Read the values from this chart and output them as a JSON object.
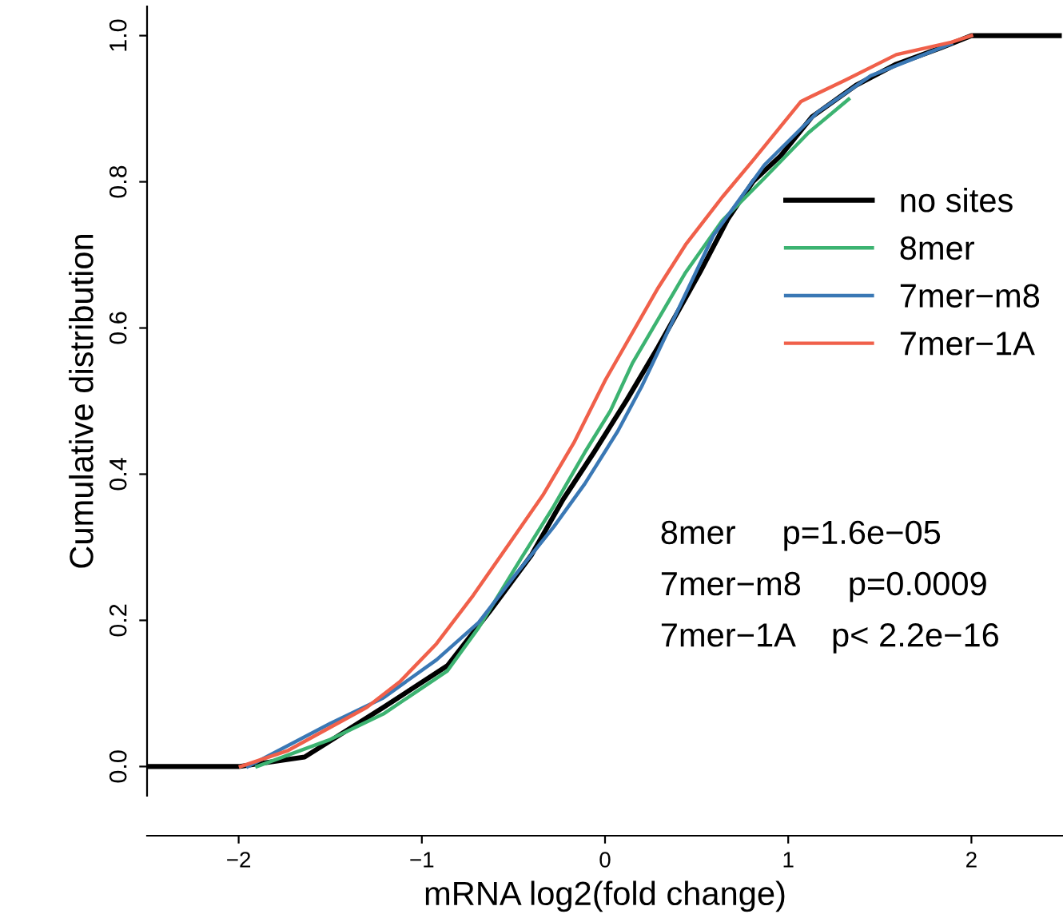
{
  "chart_data": {
    "type": "line",
    "xlabel": "mRNA log2(fold change)",
    "ylabel": "Cumulative distribution",
    "xlim": [
      -2.5,
      2.5
    ],
    "ylim": [
      -0.04,
      1.04
    ],
    "xticks": [
      {
        "value": -2,
        "label": "−2"
      },
      {
        "value": -1,
        "label": "−1"
      },
      0,
      1,
      2
    ],
    "yticks": [
      {
        "value": 0,
        "label": "0.0"
      },
      0.2,
      0.4,
      0.6,
      0.8,
      {
        "value": 1,
        "label": "1.0"
      }
    ],
    "grid": false,
    "legend": "right",
    "marker": "none",
    "line_style": "solid",
    "series": [
      {
        "name": "no sites",
        "color": "#000000",
        "x": [
          -2.49,
          -2.0,
          -1.64,
          -1.21,
          -0.86,
          -0.63,
          -0.4,
          -0.23,
          -0.06,
          0.12,
          0.29,
          0.52,
          0.67,
          0.81,
          0.96,
          1.13,
          1.37,
          1.59,
          1.83,
          2.0,
          2.48
        ],
        "values": [
          0,
          0,
          0.013,
          0.081,
          0.138,
          0.212,
          0.29,
          0.365,
          0.43,
          0.502,
          0.574,
          0.677,
          0.749,
          0.801,
          0.836,
          0.889,
          0.932,
          0.961,
          0.983,
          1.0,
          1.0
        ]
      },
      {
        "name": "8mer",
        "color": "#3cb371",
        "x": [
          -1.9,
          -1.5,
          -1.21,
          -0.86,
          -0.69,
          -0.46,
          -0.28,
          -0.11,
          0.03,
          0.15,
          0.44,
          0.64,
          0.87,
          1.11,
          1.33
        ],
        "values": [
          0,
          0.037,
          0.072,
          0.131,
          0.19,
          0.284,
          0.356,
          0.43,
          0.487,
          0.552,
          0.676,
          0.747,
          0.805,
          0.867,
          0.913
        ]
      },
      {
        "name": "7mer−m8",
        "color": "#3a78b5",
        "x": [
          -1.95,
          -1.5,
          -1.21,
          -0.92,
          -0.69,
          -0.49,
          -0.28,
          -0.11,
          0.07,
          0.2,
          0.59,
          0.87,
          1.16,
          1.45,
          1.89
        ],
        "values": [
          0,
          0.059,
          0.094,
          0.146,
          0.197,
          0.262,
          0.328,
          0.387,
          0.459,
          0.52,
          0.726,
          0.823,
          0.895,
          0.945,
          0.989
        ]
      },
      {
        "name": "7mer−1A",
        "color": "#f0604a",
        "x": [
          -1.99,
          -1.73,
          -1.3,
          -1.12,
          -0.92,
          -0.72,
          -0.52,
          -0.34,
          -0.17,
          0.0,
          0.29,
          0.44,
          0.64,
          0.81,
          1.07,
          1.31,
          1.59,
          1.89,
          2.0
        ],
        "values": [
          0,
          0.022,
          0.081,
          0.116,
          0.168,
          0.234,
          0.306,
          0.371,
          0.443,
          0.528,
          0.655,
          0.714,
          0.779,
          0.83,
          0.91,
          0.939,
          0.974,
          0.991,
          1.0
        ]
      }
    ],
    "annotations": [
      "8mer     p=1.6e−05",
      "7mer−m8     p=0.0009",
      "7mer−1A    p< 2.2e−16"
    ]
  }
}
